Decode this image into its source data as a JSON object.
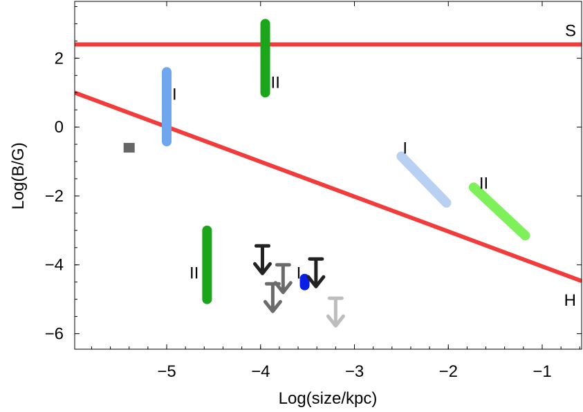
{
  "chart_data": {
    "type": "scatter",
    "title": "",
    "xlabel": "Log(size/kpc)",
    "ylabel": "Log(B/G)",
    "xlim": [
      -5.98,
      -0.58
    ],
    "ylim": [
      -6.45,
      3.65
    ],
    "xticks": [
      -5,
      -4,
      -3,
      -2,
      -1
    ],
    "yticks": [
      -6,
      -4,
      -2,
      0,
      2
    ],
    "xtick_labels": [
      "−5",
      "−4",
      "−3",
      "−2",
      "−1"
    ],
    "ytick_labels": [
      "−6",
      "−4",
      "−2",
      "0",
      "2"
    ],
    "grid": false,
    "lines": [
      {
        "label": "S",
        "color": "#f23b3b",
        "x": [
          -5.98,
          -0.58
        ],
        "y": [
          2.4,
          2.4
        ]
      },
      {
        "label": "H",
        "color": "#f23b3b",
        "x": [
          -5.98,
          -0.58
        ],
        "y": [
          1.0,
          -4.47
        ]
      }
    ],
    "segments": [
      {
        "label": "I",
        "color": "#6fa6ee",
        "x": [
          -5.0,
          -5.0
        ],
        "y": [
          -0.42,
          1.6
        ]
      },
      {
        "label": "II",
        "color": "#1aa51a",
        "x": [
          -3.95,
          -3.95
        ],
        "y": [
          1.0,
          3.0
        ]
      },
      {
        "label": "II",
        "color": "#1aa51a",
        "x": [
          -4.57,
          -4.57
        ],
        "y": [
          -5.0,
          -3.0
        ]
      },
      {
        "label": "I",
        "color": "#b8d0f2",
        "x": [
          -2.5,
          -2.02
        ],
        "y": [
          -0.85,
          -2.2
        ]
      },
      {
        "label": "II",
        "color": "#7ef05a",
        "x": [
          -1.73,
          -1.18
        ],
        "y": [
          -1.75,
          -3.15
        ]
      },
      {
        "label": "I",
        "color": "#0b1ee6",
        "x": [
          -3.53,
          -3.53
        ],
        "y": [
          -4.6,
          -4.4
        ]
      }
    ],
    "upper_limits": [
      {
        "color": "#222222",
        "x": -3.98,
        "y": -3.45
      },
      {
        "color": "#222222",
        "x": -3.41,
        "y": -3.83
      },
      {
        "color": "#6b6b6b",
        "x": -3.76,
        "y": -4.0
      },
      {
        "color": "#6b6b6b",
        "x": -3.87,
        "y": -4.55
      },
      {
        "color": "#bdbdbd",
        "x": -3.2,
        "y": -4.97
      }
    ],
    "points": [
      {
        "color": "#666666",
        "marker": "square",
        "x": -5.4,
        "y": -0.6
      }
    ]
  }
}
